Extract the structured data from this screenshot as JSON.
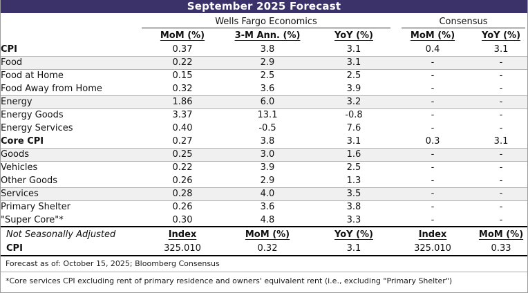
{
  "title": "September 2025 Forecast",
  "groups": {
    "wfe": "Wells Fargo Economics",
    "consensus": "Consensus"
  },
  "columns": [
    "MoM (%)",
    "3-M Ann. (%)",
    "YoY (%)",
    "MoM (%)",
    "YoY (%)"
  ],
  "rows": [
    {
      "label": "CPI",
      "style": "bold",
      "indent": 0,
      "values": [
        "0.37",
        "3.8",
        "3.1",
        "0.4",
        "3.1"
      ]
    },
    {
      "label": "Food",
      "style": "shaded",
      "indent": 1,
      "values": [
        "0.22",
        "2.9",
        "3.1",
        "-",
        "-"
      ]
    },
    {
      "label": "Food at Home",
      "style": "plain",
      "indent": 2,
      "values": [
        "0.15",
        "2.5",
        "2.5",
        "-",
        "-"
      ]
    },
    {
      "label": "Food Away from Home",
      "style": "plain",
      "indent": 2,
      "values": [
        "0.32",
        "3.6",
        "3.9",
        "-",
        "-"
      ]
    },
    {
      "label": "Energy",
      "style": "shaded",
      "indent": 1,
      "values": [
        "1.86",
        "6.0",
        "3.2",
        "-",
        "-"
      ]
    },
    {
      "label": "Energy Goods",
      "style": "plain",
      "indent": 2,
      "values": [
        "3.37",
        "13.1",
        "-0.8",
        "-",
        "-"
      ]
    },
    {
      "label": "Energy Services",
      "style": "plain",
      "indent": 2,
      "values": [
        "0.40",
        "-0.5",
        "7.6",
        "-",
        "-"
      ]
    },
    {
      "label": "Core CPI",
      "style": "bold",
      "indent": 0,
      "values": [
        "0.27",
        "3.8",
        "3.1",
        "0.3",
        "3.1"
      ]
    },
    {
      "label": "Goods",
      "style": "shaded",
      "indent": 1,
      "values": [
        "0.25",
        "3.0",
        "1.6",
        "-",
        "-"
      ]
    },
    {
      "label": "Vehicles",
      "style": "plain",
      "indent": 2,
      "values": [
        "0.22",
        "3.9",
        "2.5",
        "-",
        "-"
      ]
    },
    {
      "label": "Other Goods",
      "style": "plain",
      "indent": 2,
      "values": [
        "0.26",
        "2.9",
        "1.3",
        "-",
        "-"
      ]
    },
    {
      "label": "Services",
      "style": "shaded",
      "indent": 1,
      "values": [
        "0.28",
        "4.0",
        "3.5",
        "-",
        "-"
      ]
    },
    {
      "label": "Primary Shelter",
      "style": "plain",
      "indent": 2,
      "values": [
        "0.26",
        "3.6",
        "3.8",
        "-",
        "-"
      ]
    },
    {
      "label": "\"Super Core\"*",
      "style": "plain",
      "indent": 2,
      "values": [
        "0.30",
        "4.8",
        "3.3",
        "-",
        "-"
      ]
    }
  ],
  "nsa": {
    "label": "Not Seasonally Adjusted",
    "columns": [
      "Index",
      "MoM (%)",
      "YoY (%)",
      "Index",
      "MoM (%)"
    ],
    "row": {
      "label": "CPI",
      "values": [
        "325.010",
        "0.32",
        "3.1",
        "325.010",
        "0.33"
      ]
    }
  },
  "footnotes": [
    "Forecast as of: October 15, 2025; Bloomberg Consensus",
    "*Core services CPI excluding rent of primary residence and owners' equivalent rent (i.e., excluding \"Primary Shelter\")"
  ],
  "colors": {
    "header_bg": "#3B3269",
    "shaded_row": "#F0F0F0"
  }
}
